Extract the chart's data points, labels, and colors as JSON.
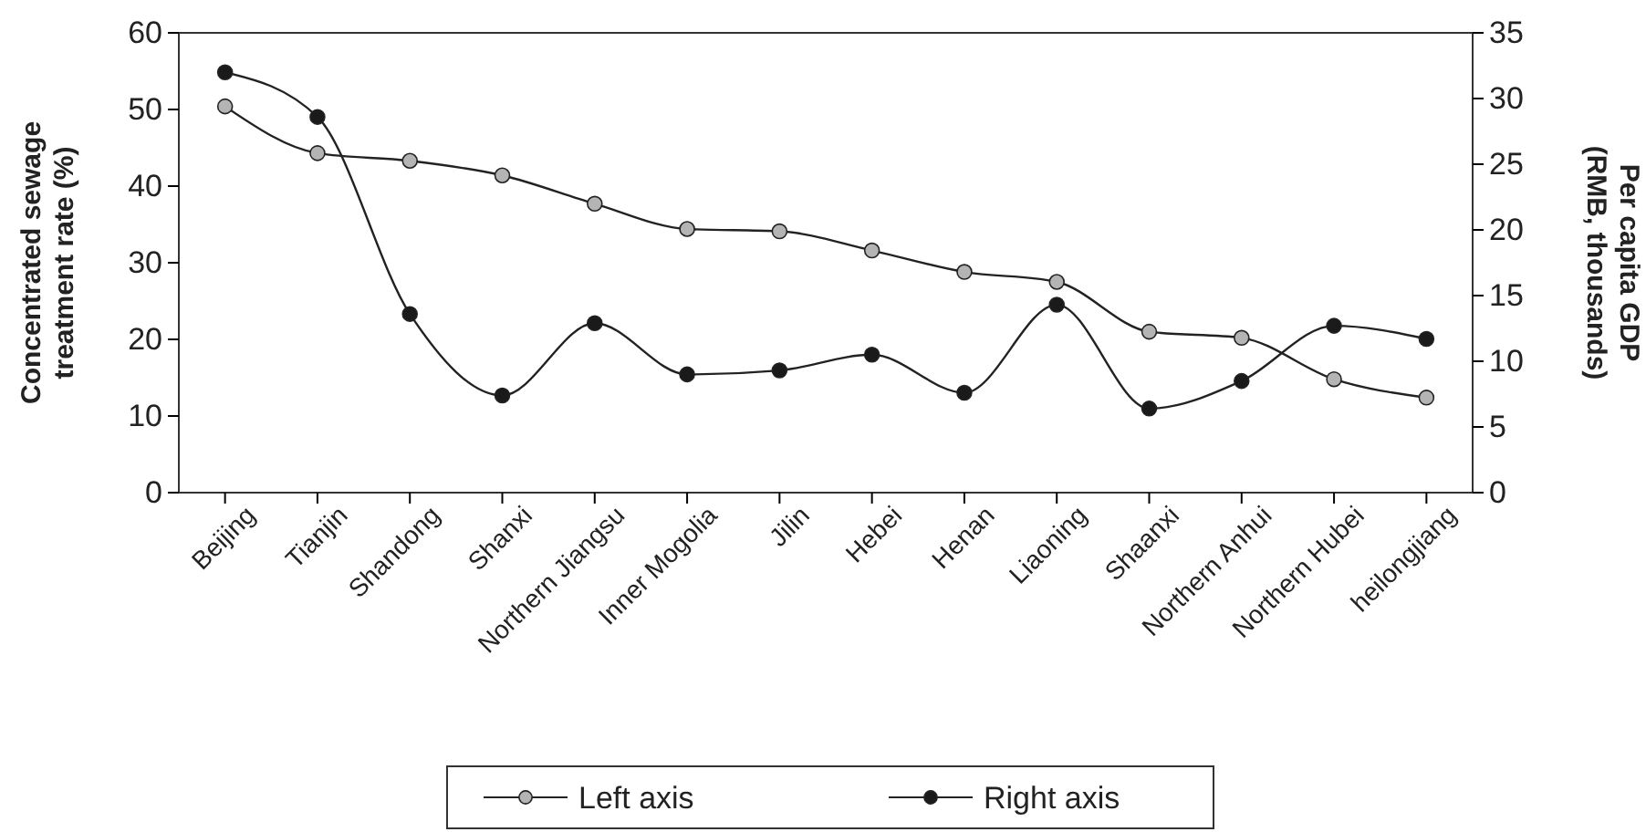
{
  "chart_data": {
    "type": "line",
    "ylabel": "Concentrated sewage treatment rate (%)",
    "y2label": "Per capita GDP (RMB, thousands)",
    "categories": [
      "Beijing",
      "Tianjin",
      "Shandong",
      "Shanxi",
      "Northern Jiangsu",
      "Inner Mogolia",
      "Jilin",
      "Hebei",
      "Henan",
      "Liaoning",
      "Shaanxi",
      "Northern Anhui",
      "Northern Hubei",
      "heilongjiang"
    ],
    "series": [
      {
        "name": "Left axis",
        "color": "#b4b4b4",
        "values": [
          50.4,
          44.3,
          43.3,
          41.4,
          37.7,
          34.4,
          34.1,
          31.6,
          28.8,
          27.5,
          21.0,
          20.2,
          14.8,
          12.4
        ]
      },
      {
        "name": "Right axis",
        "color": "#1a1a1a",
        "axis": "y2",
        "values": [
          32.0,
          28.6,
          13.6,
          7.4,
          12.9,
          9.0,
          9.3,
          10.5,
          7.6,
          14.3,
          6.4,
          8.5,
          12.7,
          11.7
        ]
      }
    ],
    "ylim": [
      0,
      60
    ],
    "yticks": [
      0,
      10,
      20,
      30,
      40,
      50,
      60
    ],
    "y2lim": [
      0,
      35
    ],
    "y2ticks": [
      0,
      5,
      10,
      15,
      20,
      25,
      30,
      35
    ],
    "marker": "circle",
    "line_style": "solid",
    "grid": false,
    "legend": "bottom"
  }
}
